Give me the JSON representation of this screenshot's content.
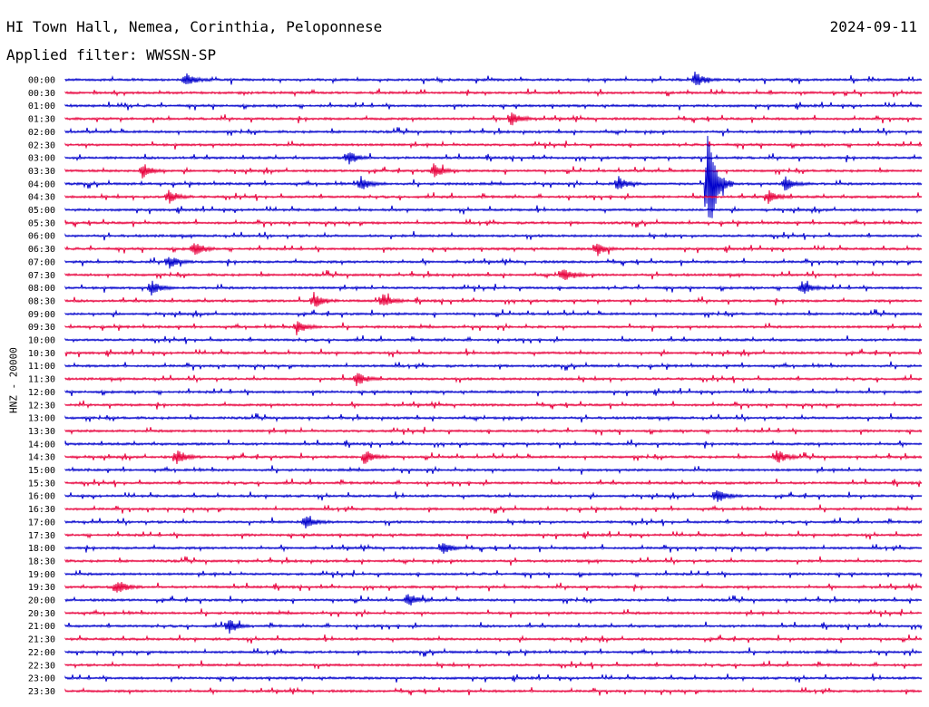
{
  "header": {
    "station": "HI Town Hall, Nemea, Corinthia, Peloponnese",
    "date": "2024-09-11",
    "filter": "Applied filter: WWSSN-SP"
  },
  "chart_data": {
    "type": "line",
    "ylabel": "HNZ - 20000",
    "row_times": [
      "00:00",
      "00:30",
      "01:00",
      "01:30",
      "02:00",
      "02:30",
      "03:00",
      "03:30",
      "04:00",
      "04:30",
      "05:00",
      "05:30",
      "06:00",
      "06:30",
      "07:00",
      "07:30",
      "08:00",
      "08:30",
      "09:00",
      "09:30",
      "10:00",
      "10:30",
      "11:00",
      "11:30",
      "12:00",
      "12:30",
      "13:00",
      "13:30",
      "14:00",
      "14:30",
      "15:00",
      "15:30",
      "16:00",
      "16:30",
      "17:00",
      "17:30",
      "18:00",
      "18:30",
      "19:00",
      "19:30",
      "20:00",
      "20:30",
      "21:00",
      "21:30",
      "22:00",
      "22:30",
      "23:00",
      "23:30"
    ],
    "series_colors": [
      "#0000cc",
      "#e8003c"
    ],
    "events": [
      {
        "row": 0,
        "x": 0.14
      },
      {
        "row": 0,
        "x": 0.735
      },
      {
        "row": 3,
        "x": 0.52
      },
      {
        "row": 6,
        "x": 0.33
      },
      {
        "row": 7,
        "x": 0.09
      },
      {
        "row": 7,
        "x": 0.43
      },
      {
        "row": 8,
        "x": 0.345
      },
      {
        "row": 8,
        "x": 0.645
      },
      {
        "row": 8,
        "x": 0.75,
        "amp": 70
      },
      {
        "row": 8,
        "x": 0.84
      },
      {
        "row": 9,
        "x": 0.12
      },
      {
        "row": 9,
        "x": 0.82
      },
      {
        "row": 13,
        "x": 0.15
      },
      {
        "row": 13,
        "x": 0.62
      },
      {
        "row": 14,
        "x": 0.12
      },
      {
        "row": 15,
        "x": 0.58
      },
      {
        "row": 16,
        "x": 0.1
      },
      {
        "row": 16,
        "x": 0.86
      },
      {
        "row": 17,
        "x": 0.29
      },
      {
        "row": 17,
        "x": 0.37
      },
      {
        "row": 19,
        "x": 0.27
      },
      {
        "row": 23,
        "x": 0.34
      },
      {
        "row": 29,
        "x": 0.13
      },
      {
        "row": 29,
        "x": 0.35
      },
      {
        "row": 29,
        "x": 0.83
      },
      {
        "row": 32,
        "x": 0.76
      },
      {
        "row": 34,
        "x": 0.28
      },
      {
        "row": 36,
        "x": 0.44
      },
      {
        "row": 39,
        "x": 0.06
      },
      {
        "row": 40,
        "x": 0.4
      },
      {
        "row": 42,
        "x": 0.19
      }
    ]
  }
}
